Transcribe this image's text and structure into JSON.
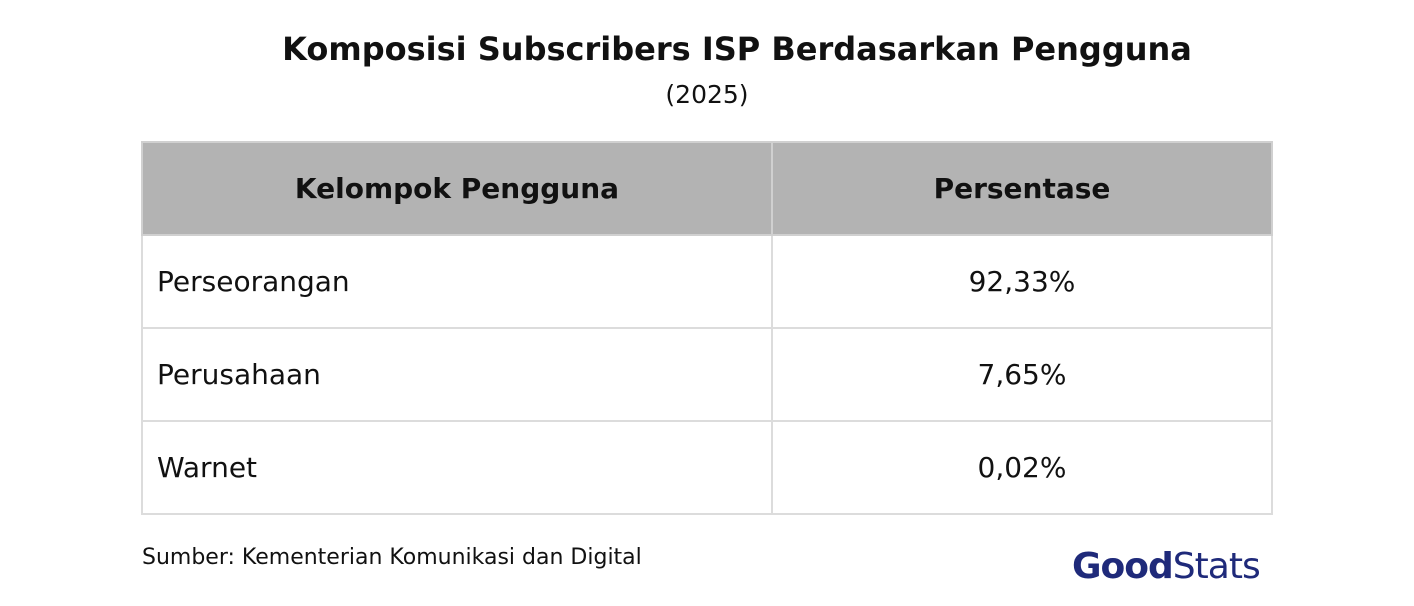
{
  "header": {
    "title": "Komposisi Subscribers ISP Berdasarkan Pengguna",
    "subtitle": "(2025)"
  },
  "table": {
    "columns": [
      "Kelompok Pengguna",
      "Persentase"
    ],
    "rows": [
      [
        "Perseorangan",
        "92,33%"
      ],
      [
        "Perusahaan",
        "7,65%"
      ],
      [
        "Warnet",
        "0,02%"
      ]
    ]
  },
  "footer": {
    "source": "Sumber: Kementerian Komunikasi dan Digital",
    "logo": [
      "Good",
      "Stats"
    ]
  }
}
